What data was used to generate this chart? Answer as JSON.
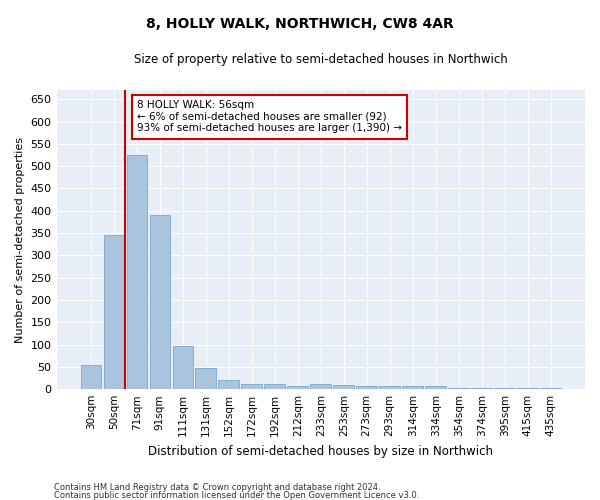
{
  "title": "8, HOLLY WALK, NORTHWICH, CW8 4AR",
  "subtitle": "Size of property relative to semi-detached houses in Northwich",
  "xlabel": "Distribution of semi-detached houses by size in Northwich",
  "ylabel": "Number of semi-detached properties",
  "footnote1": "Contains HM Land Registry data © Crown copyright and database right 2024.",
  "footnote2": "Contains public sector information licensed under the Open Government Licence v3.0.",
  "annotation_line1": "8 HOLLY WALK: 56sqm",
  "annotation_line2": "← 6% of semi-detached houses are smaller (92)",
  "annotation_line3": "93% of semi-detached houses are larger (1,390) →",
  "bar_color": "#aac4de",
  "bar_edge_color": "#6a9dc8",
  "red_line_color": "#cc0000",
  "background_color": "#e8eef5",
  "categories": [
    "30sqm",
    "50sqm",
    "71sqm",
    "91sqm",
    "111sqm",
    "131sqm",
    "152sqm",
    "172sqm",
    "192sqm",
    "212sqm",
    "233sqm",
    "253sqm",
    "273sqm",
    "293sqm",
    "314sqm",
    "334sqm",
    "354sqm",
    "374sqm",
    "395sqm",
    "415sqm",
    "435sqm"
  ],
  "values": [
    55,
    345,
    525,
    390,
    97,
    47,
    20,
    12,
    12,
    7,
    11,
    10,
    7,
    7,
    7,
    7,
    3,
    3,
    3,
    3,
    3
  ],
  "red_line_x": 1.5,
  "ylim": [
    0,
    670
  ],
  "yticks": [
    0,
    50,
    100,
    150,
    200,
    250,
    300,
    350,
    400,
    450,
    500,
    550,
    600,
    650
  ]
}
